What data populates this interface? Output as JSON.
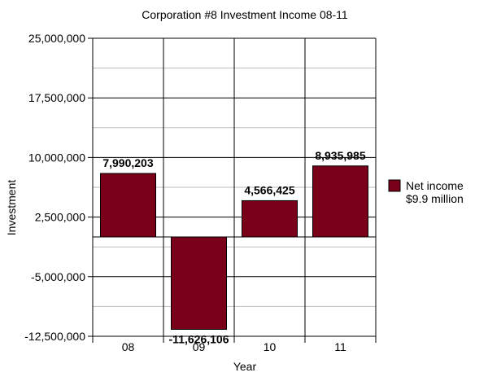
{
  "chart_data": {
    "type": "bar",
    "title": "Corporation #8 Investment Income 08-11",
    "xlabel": "Year",
    "ylabel": "Investment",
    "categories": [
      "08",
      "09",
      "10",
      "11"
    ],
    "series": [
      {
        "name": "Net income $9.9 million",
        "legend_lines": [
          "Net income",
          "$9.9 million"
        ],
        "values": [
          7990203,
          -11626106,
          4566425,
          8935985
        ],
        "labels": [
          "7,990,203",
          "-11,626,106",
          "4,566,425",
          "8,935,985"
        ],
        "color": "#7a0019"
      }
    ],
    "ylim": [
      -12500000,
      25000000
    ],
    "yticks": [
      25000000,
      17500000,
      10000000,
      2500000,
      -5000000,
      -12500000
    ],
    "ytick_labels": [
      "25,000,000",
      "17,500,000",
      "10,000,000",
      "2,500,000",
      "-5,000,000",
      "-12,500,000"
    ],
    "grid": true,
    "legend_position": "right"
  }
}
